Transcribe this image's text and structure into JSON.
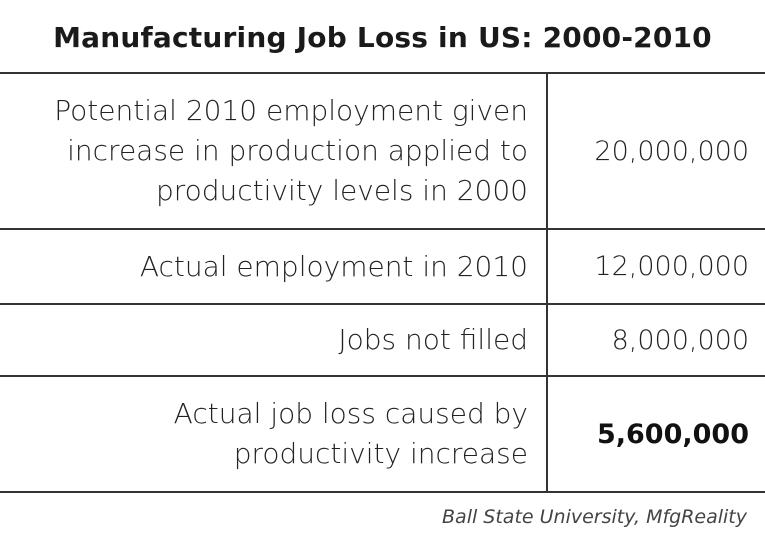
{
  "chart_data": {
    "type": "table",
    "title": "Manufacturing Job Loss in US: 2000-2010",
    "rows": [
      {
        "label_lines": [
          "Potential 2010 employment given",
          "increase in production applied to",
          "productivity levels in 2000"
        ],
        "value": "20,000,000"
      },
      {
        "label_lines": [
          "Actual employment in 2010"
        ],
        "value": "12,000,000"
      },
      {
        "label_lines": [
          "Jobs not filled"
        ],
        "value": "8,000,000"
      },
      {
        "label_lines": [
          "Actual job loss caused by",
          "productivity increase"
        ],
        "value": "5,600,000",
        "emphasized": true
      }
    ],
    "source": "Ball State University, MfgReality"
  }
}
